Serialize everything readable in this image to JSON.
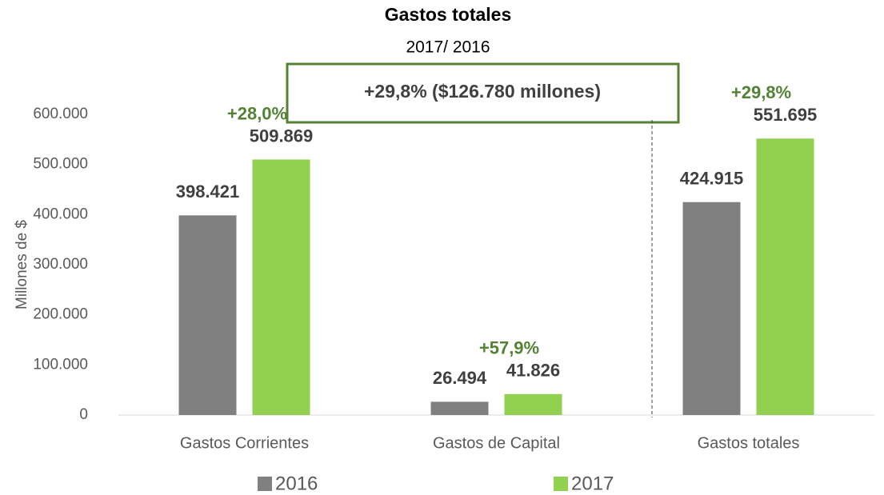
{
  "chart_data": {
    "type": "bar",
    "title": "Gastos totales",
    "subtitle": "2017/ 2016",
    "annotation": "+29,8% ($126.780 millones)",
    "y_label": "Millones de $",
    "categories": [
      "Gastos Corrientes",
      "Gastos de Capital",
      "Gastos totales"
    ],
    "series": [
      {
        "name": "2016",
        "color": "#808080",
        "values": [
          398421,
          26494,
          424915
        ],
        "value_labels": [
          "398.421",
          "26.494",
          "424.915"
        ]
      },
      {
        "name": "2017",
        "color": "#92d050",
        "values": [
          509869,
          41826,
          551695
        ],
        "value_labels": [
          "509.869",
          "41.826",
          "551.695"
        ],
        "growth_labels": [
          "+28,0%",
          "+57,9%",
          "+29,8%"
        ]
      }
    ],
    "ylim": [
      0,
      600000
    ],
    "yticks": [
      0,
      {
        "value": 100000,
        "label": "100.000"
      },
      {
        "value": 200000,
        "label": "200.000"
      },
      {
        "value": 300000,
        "label": "300.000"
      },
      {
        "value": 400000,
        "label": "400.000"
      },
      {
        "value": 500000,
        "label": "500.000"
      },
      {
        "value": 600000,
        "label": "600.000"
      }
    ],
    "legend": "bottom",
    "grid": false
  }
}
